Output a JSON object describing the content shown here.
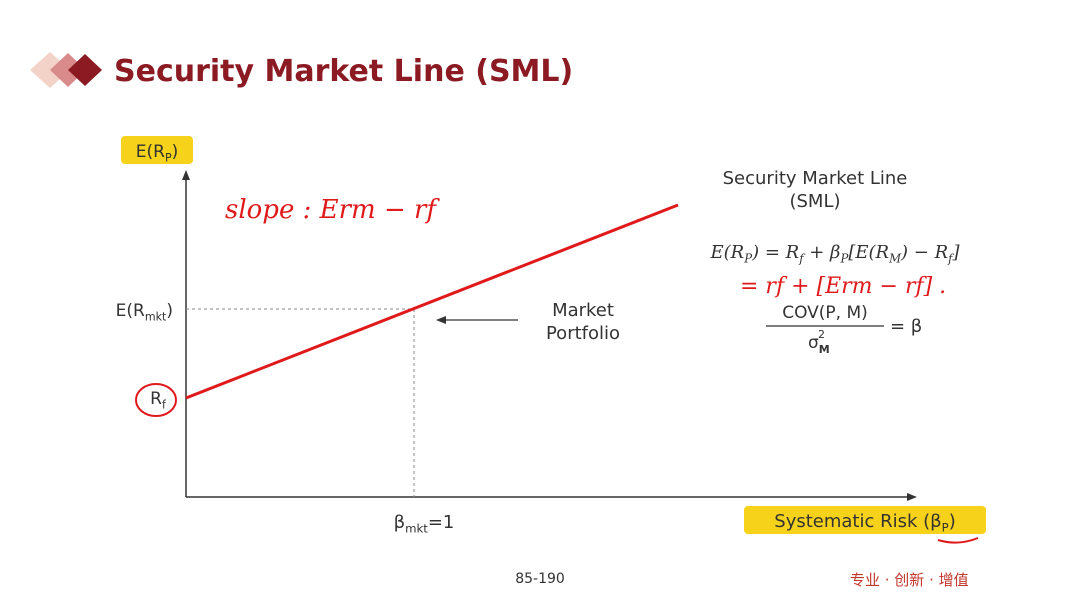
{
  "header": {
    "title": "Security Market Line (SML)"
  },
  "diagram": {
    "y_axis_label": [
      "E(R",
      "P",
      ")"
    ],
    "x_axis_label": [
      "Systematic Risk (β",
      "P",
      ")"
    ],
    "market_return_label": [
      "E(R",
      "mkt",
      ")"
    ],
    "risk_free_label": [
      "R",
      "f"
    ],
    "beta_label": [
      "β",
      "mkt",
      "=1"
    ],
    "line_label": [
      "Security Market Line",
      "(SML)"
    ],
    "portfolio_label": [
      "Market",
      "Portfolio"
    ],
    "formula": [
      "E(R",
      "P",
      ") = R",
      "f",
      " + β",
      "P",
      "[E(R",
      "M",
      ") − R",
      "f",
      "]"
    ],
    "cov_fraction": {
      "numerator": "COV(P, M)",
      "denominator": [
        "σ",
        "M"
      ],
      "superscript": "2",
      "result": "= β"
    },
    "annotations": {
      "slope": "slope :  Erm − rf",
      "expansion": "= rf + [Erm − rf] ."
    }
  },
  "footer": {
    "page": "85-190",
    "brand": "专业 · 创新 · 增值"
  }
}
